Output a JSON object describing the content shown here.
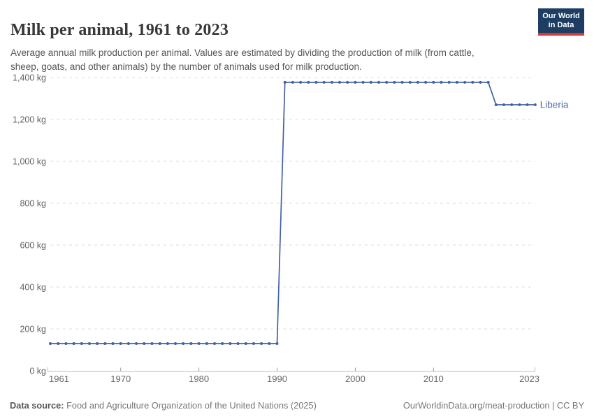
{
  "header": {
    "title": "Milk per animal, 1961 to 2023",
    "subtitle": "Average annual milk production per animal. Values are estimated by dividing the production of milk (from cattle, sheep, goats, and other animals) by the number of animals used for milk production.",
    "logo": {
      "line1": "Our World",
      "line2": "in Data"
    }
  },
  "footer": {
    "source_label": "Data source:",
    "source_text": "Food and Agriculture Organization of the United Nations (2025)",
    "credit": "OurWorldinData.org/meat-production | CC BY"
  },
  "colors": {
    "line": "#4262a4",
    "entity_label": "#4e6ba8",
    "grid": "#dcdcdc",
    "axis": "#bbbbbb",
    "tick": "#999999",
    "tick_text": "#666666",
    "logo_bg": "#1d3d63",
    "logo_stripe": "#d23a34"
  },
  "chart_data": {
    "type": "line",
    "title": "Milk per animal, 1961 to 2023",
    "xlabel": "",
    "ylabel": "",
    "unit": "kg",
    "grid": "dashed-horizontal",
    "legend_position": "end-of-line-label",
    "xlim": [
      1961,
      2023
    ],
    "ylim": [
      0,
      1400
    ],
    "x_ticks": [
      {
        "value": 1961,
        "label": "1961"
      },
      {
        "value": 1970,
        "label": "1970"
      },
      {
        "value": 1980,
        "label": "1980"
      },
      {
        "value": 1990,
        "label": "1990"
      },
      {
        "value": 2000,
        "label": "2000"
      },
      {
        "value": 2010,
        "label": "2010"
      },
      {
        "value": 2023,
        "label": "2023"
      }
    ],
    "y_ticks": [
      {
        "value": 0,
        "label": "0 kg"
      },
      {
        "value": 200,
        "label": "200 kg"
      },
      {
        "value": 400,
        "label": "400 kg"
      },
      {
        "value": 600,
        "label": "600 kg"
      },
      {
        "value": 800,
        "label": "800 kg"
      },
      {
        "value": 1000,
        "label": "1,000 kg"
      },
      {
        "value": 1200,
        "label": "1,200 kg"
      },
      {
        "value": 1400,
        "label": "1,400 kg"
      }
    ],
    "series": [
      {
        "name": "Liberia",
        "x": [
          1961,
          1962,
          1963,
          1964,
          1965,
          1966,
          1967,
          1968,
          1969,
          1970,
          1971,
          1972,
          1973,
          1974,
          1975,
          1976,
          1977,
          1978,
          1979,
          1980,
          1981,
          1982,
          1983,
          1984,
          1985,
          1986,
          1987,
          1988,
          1989,
          1990,
          1991,
          1992,
          1993,
          1994,
          1995,
          1996,
          1997,
          1998,
          1999,
          2000,
          2001,
          2002,
          2003,
          2004,
          2005,
          2006,
          2007,
          2008,
          2009,
          2010,
          2011,
          2012,
          2013,
          2014,
          2015,
          2016,
          2017,
          2018,
          2019,
          2020,
          2021,
          2022,
          2023
        ],
        "y": [
          130,
          130,
          130,
          130,
          130,
          130,
          130,
          130,
          130,
          130,
          130,
          130,
          130,
          130,
          130,
          130,
          130,
          130,
          130,
          130,
          130,
          130,
          130,
          130,
          130,
          130,
          130,
          130,
          130,
          130,
          1377,
          1377,
          1377,
          1377,
          1377,
          1377,
          1377,
          1377,
          1377,
          1377,
          1377,
          1377,
          1377,
          1377,
          1377,
          1377,
          1377,
          1377,
          1377,
          1377,
          1377,
          1377,
          1377,
          1377,
          1377,
          1377,
          1377,
          1270,
          1270,
          1270,
          1270,
          1270,
          1270
        ]
      }
    ]
  }
}
